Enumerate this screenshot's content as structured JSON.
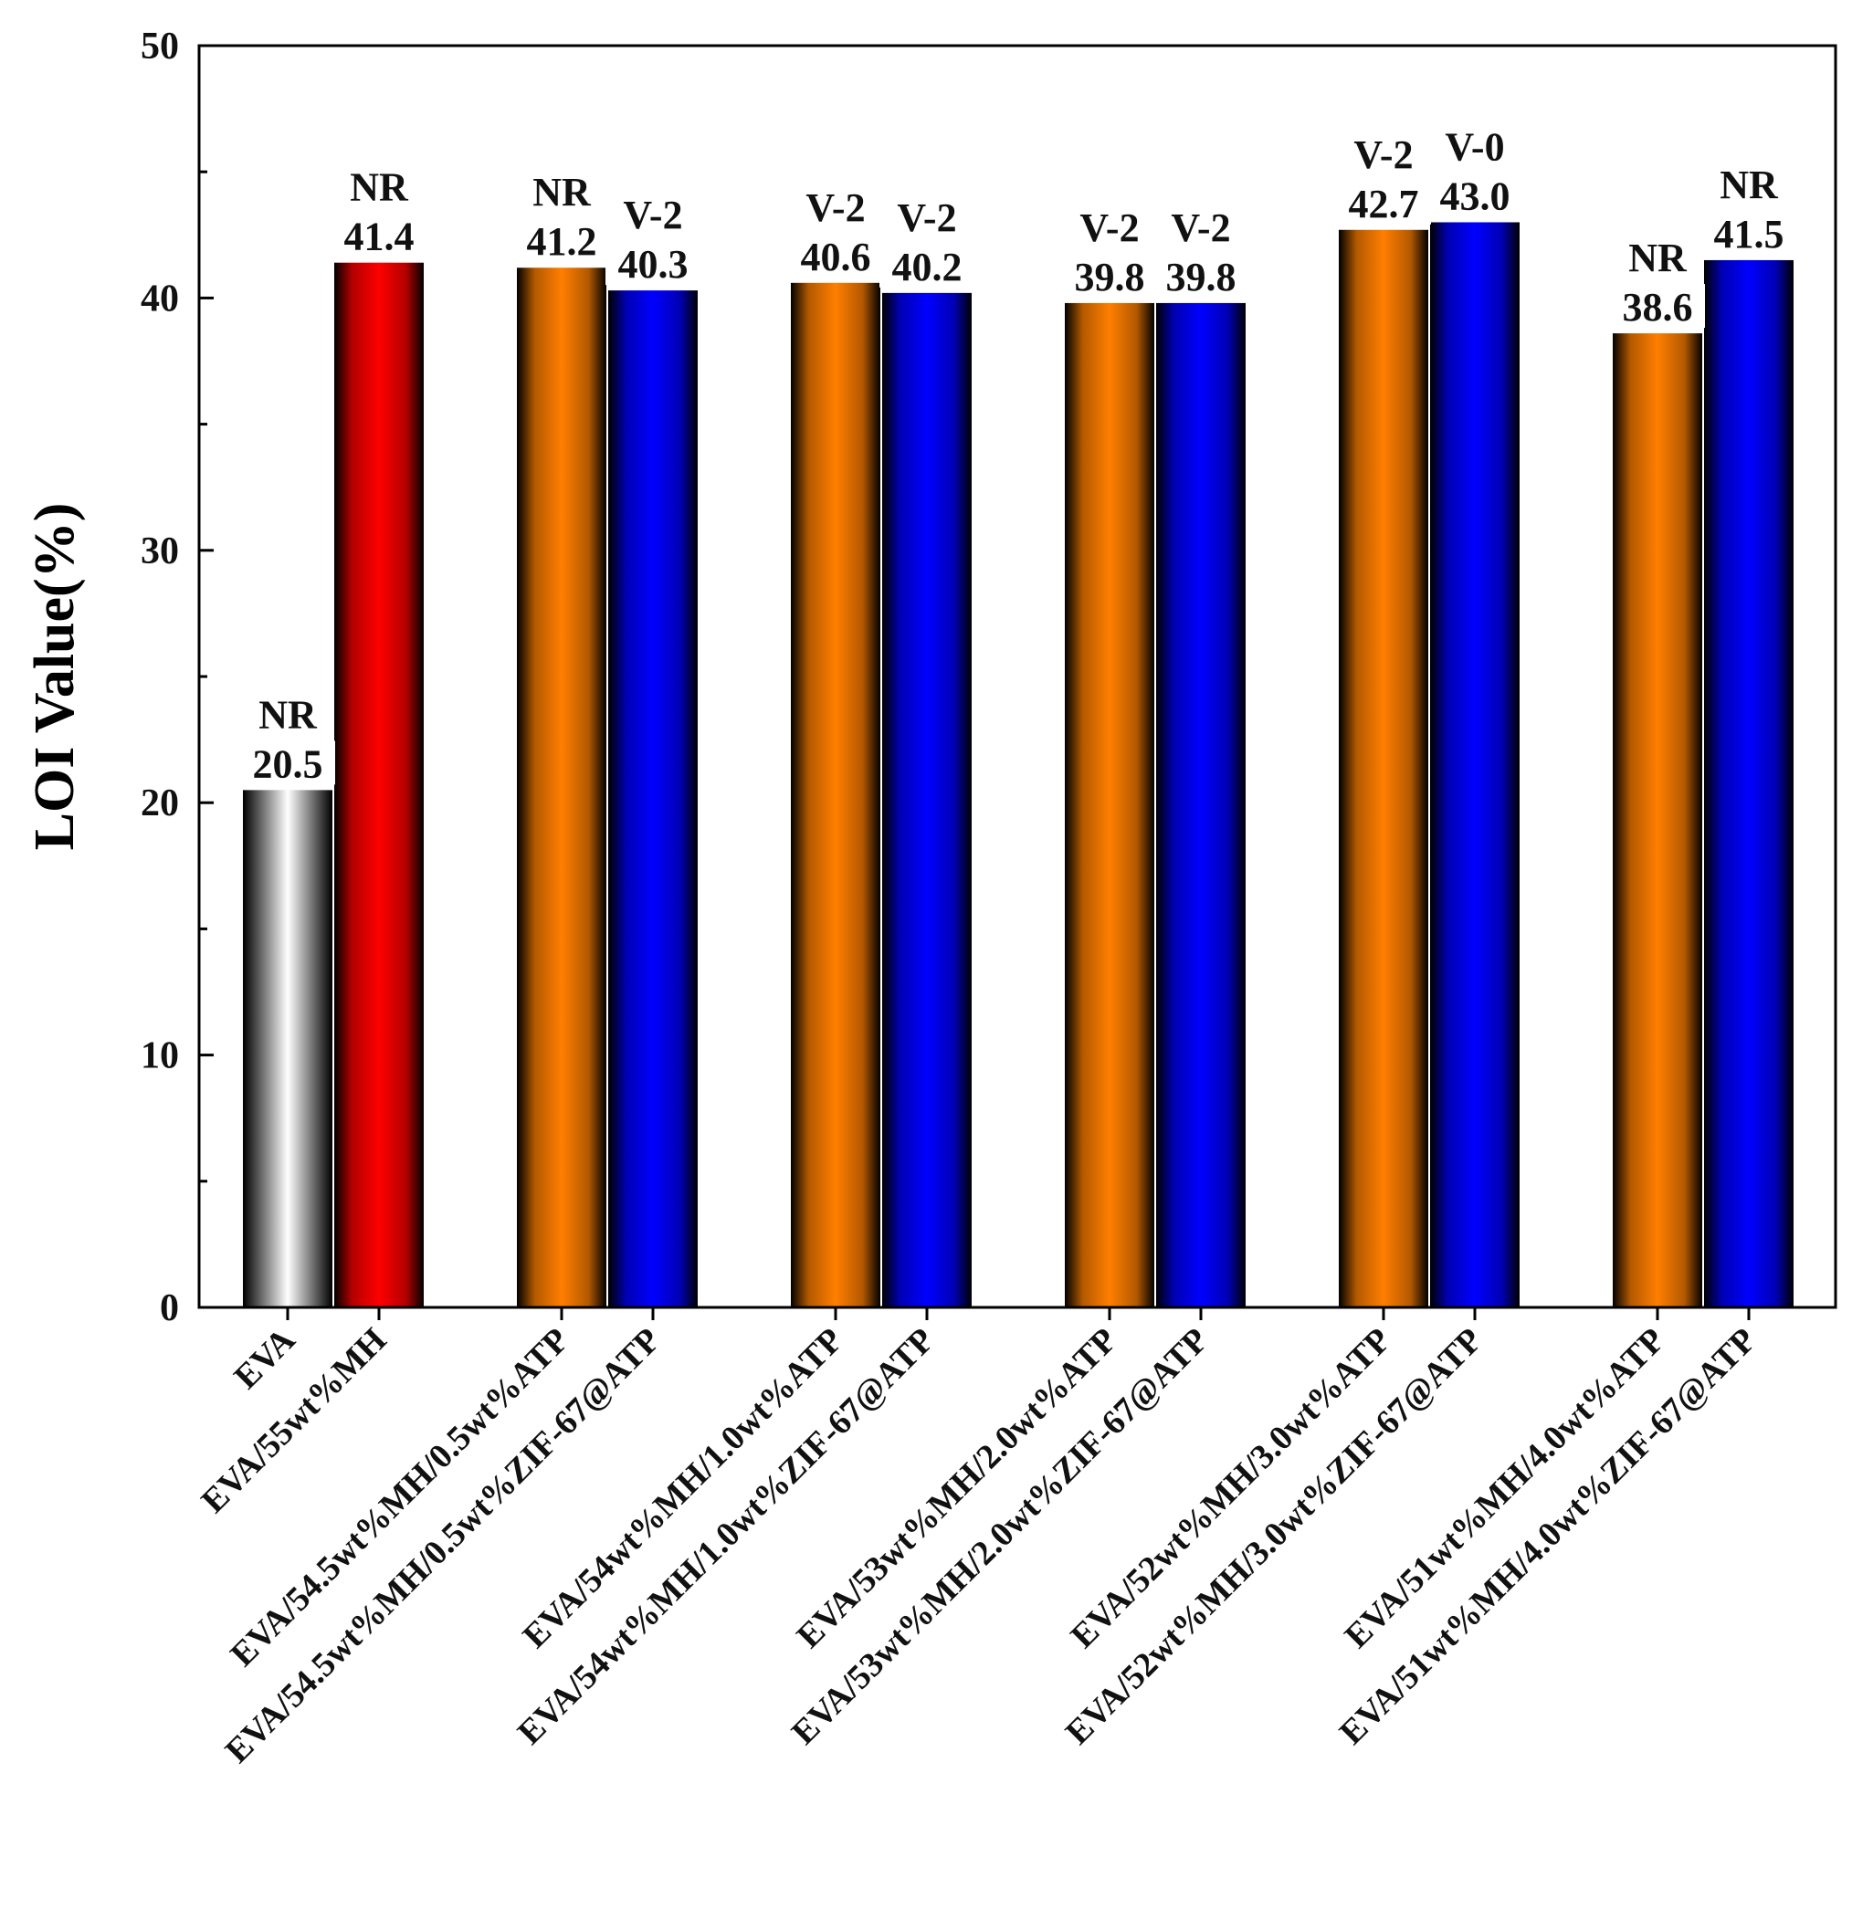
{
  "chart_data": {
    "type": "bar",
    "title": "",
    "xlabel": "",
    "ylabel": "LOI Value(%)",
    "ylim": [
      0,
      50
    ],
    "yticks": [
      0,
      10,
      20,
      30,
      40,
      50
    ],
    "grid": false,
    "groups": [
      {
        "bars": [
          {
            "category": "EVA",
            "value": 20.5,
            "value_text": "20.5",
            "rating": "NR",
            "color": "#ffffff"
          },
          {
            "category": "EVA/55wt%MH",
            "value": 41.4,
            "value_text": "41.4",
            "rating": "NR",
            "color": "#ff0000"
          }
        ]
      },
      {
        "bars": [
          {
            "category": "EVA/54.5wt%MH/0.5wt%ATP",
            "value": 41.2,
            "value_text": "41.2",
            "rating": "NR",
            "color": "#ff7f00"
          },
          {
            "category": "EVA/54.5wt%MH/0.5wt%ZIF-67@ATP",
            "value": 40.3,
            "value_text": "40.3",
            "rating": "V-2",
            "color": "#0000ff"
          }
        ]
      },
      {
        "bars": [
          {
            "category": "EVA/54wt%MH/1.0wt%ATP",
            "value": 40.6,
            "value_text": "40.6",
            "rating": "V-2",
            "color": "#ff7f00"
          },
          {
            "category": "EVA/54wt%MH/1.0wt%ZIF-67@ATP",
            "value": 40.2,
            "value_text": "40.2",
            "rating": "V-2",
            "color": "#0000ff"
          }
        ]
      },
      {
        "bars": [
          {
            "category": "EVA/53wt%MH/2.0wt%ATP",
            "value": 39.8,
            "value_text": "39.8",
            "rating": "V-2",
            "color": "#ff7f00"
          },
          {
            "category": "EVA/53wt%MH/2.0wt%ZIF-67@ATP",
            "value": 39.8,
            "value_text": "39.8",
            "rating": "V-2",
            "color": "#0000ff"
          }
        ]
      },
      {
        "bars": [
          {
            "category": "EVA/52wt%MH/3.0wt%ATP",
            "value": 42.7,
            "value_text": "42.7",
            "rating": "V-2",
            "color": "#ff7f00"
          },
          {
            "category": "EVA/52wt%MH/3.0wt%ZIF-67@ATP",
            "value": 43.0,
            "value_text": "43.0",
            "rating": "V-0",
            "color": "#0000ff"
          }
        ]
      },
      {
        "bars": [
          {
            "category": "EVA/51wt%MH/4.0wt%ATP",
            "value": 38.6,
            "value_text": "38.6",
            "rating": "NR",
            "color": "#ff7f00"
          },
          {
            "category": "EVA/51wt%MH/4.0wt%ZIF-67@ATP",
            "value": 41.5,
            "value_text": "41.5",
            "rating": "NR",
            "color": "#0000ff"
          }
        ]
      }
    ]
  }
}
